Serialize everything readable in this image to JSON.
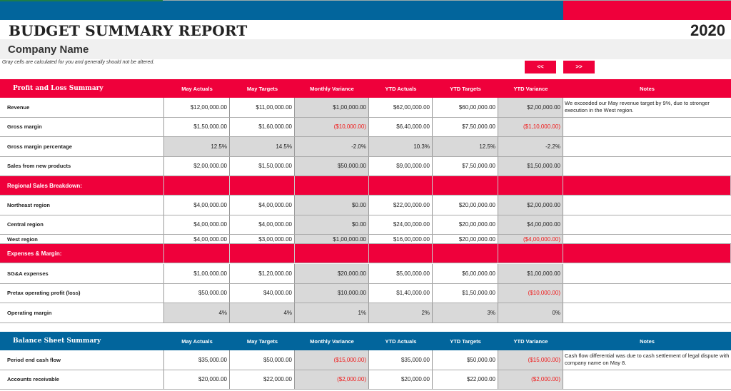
{
  "header": {
    "title": "BUDGET SUMMARY REPORT",
    "year": "2020",
    "company": "Company Name",
    "hint": "Gray cells are calculated for you and generally should not be altered.",
    "prev_label": "<<",
    "next_label": ">>"
  },
  "colors": {
    "red": "#ef003b",
    "blue": "#02659c",
    "negative": "#f01818",
    "calculated_gray": "#d9d9d9"
  },
  "columns": [
    "May Actuals",
    "May Targets",
    "Monthly Variance",
    "YTD Actuals",
    "YTD Targets",
    "YTD Variance",
    "Notes"
  ],
  "profit_loss": {
    "title": "Profit and Loss Summary",
    "rows": [
      {
        "type": "data",
        "label": "Revenue",
        "values": [
          "$12,00,000.00",
          "$11,00,000.00",
          "$1,00,000.00",
          "$62,00,000.00",
          "$60,00,000.00",
          "$2,00,000.00"
        ],
        "note": "We exceeded our May revenue target by 9%, due to stronger execution in the West region."
      },
      {
        "type": "data",
        "label": "Gross margin",
        "values": [
          "$1,50,000.00",
          "$1,60,000.00",
          "($10,000.00)",
          "$6,40,000.00",
          "$7,50,000.00",
          "($1,10,000.00)"
        ],
        "note": ""
      },
      {
        "type": "data",
        "label": "Gross margin percentage",
        "calculated": true,
        "values": [
          "12.5%",
          "14.5%",
          "-2.0%",
          "10.3%",
          "12.5%",
          "-2.2%"
        ],
        "note": ""
      },
      {
        "type": "data",
        "label": "Sales from new products",
        "values": [
          "$2,00,000.00",
          "$1,50,000.00",
          "$50,000.00",
          "$9,00,000.00",
          "$7,50,000.00",
          "$1,50,000.00"
        ],
        "note": ""
      },
      {
        "type": "section",
        "label": "Regional Sales Breakdown:"
      },
      {
        "type": "data",
        "label": "Northeast region",
        "values": [
          "$4,00,000.00",
          "$4,00,000.00",
          "$0.00",
          "$22,00,000.00",
          "$20,00,000.00",
          "$2,00,000.00"
        ],
        "note": ""
      },
      {
        "type": "data",
        "label": "Central region",
        "values": [
          "$4,00,000.00",
          "$4,00,000.00",
          "$0.00",
          "$24,00,000.00",
          "$20,00,000.00",
          "$4,00,000.00"
        ],
        "note": ""
      },
      {
        "type": "data",
        "short": true,
        "label": "West region",
        "values": [
          "$4,00,000.00",
          "$3,00,000.00",
          "$1,00,000.00",
          "$16,00,000.00",
          "$20,00,000.00",
          "($4,00,000.00)"
        ],
        "note": ""
      },
      {
        "type": "section",
        "label": "Expenses & Margin:"
      },
      {
        "type": "data",
        "label": "SG&A expenses",
        "values": [
          "$1,00,000.00",
          "$1,20,000.00",
          "$20,000.00",
          "$5,00,000.00",
          "$6,00,000.00",
          "$1,00,000.00"
        ],
        "note": ""
      },
      {
        "type": "data",
        "label": "Pretax operating profit (loss)",
        "values": [
          "$50,000.00",
          "$40,000.00",
          "$10,000.00",
          "$1,40,000.00",
          "$1,50,000.00",
          "($10,000.00)"
        ],
        "note": ""
      },
      {
        "type": "data",
        "label": "Operating margin",
        "calculated": true,
        "values": [
          "4%",
          "4%",
          "1%",
          "2%",
          "3%",
          "0%"
        ],
        "note": ""
      }
    ]
  },
  "balance_sheet": {
    "title": "Balance Sheet Summary",
    "rows": [
      {
        "type": "data",
        "label": "Period end cash flow",
        "values": [
          "$35,000.00",
          "$50,000.00",
          "($15,000.00)",
          "$35,000.00",
          "$50,000.00",
          "($15,000.00)"
        ],
        "note": "Cash flow differential was due to cash settlement of legal dispute with company name on May 8."
      },
      {
        "type": "data",
        "label": "Accounts receivable",
        "values": [
          "$20,000.00",
          "$22,000.00",
          "($2,000.00)",
          "$20,000.00",
          "$22,000.00",
          "($2,000.00)"
        ],
        "note": ""
      }
    ]
  }
}
